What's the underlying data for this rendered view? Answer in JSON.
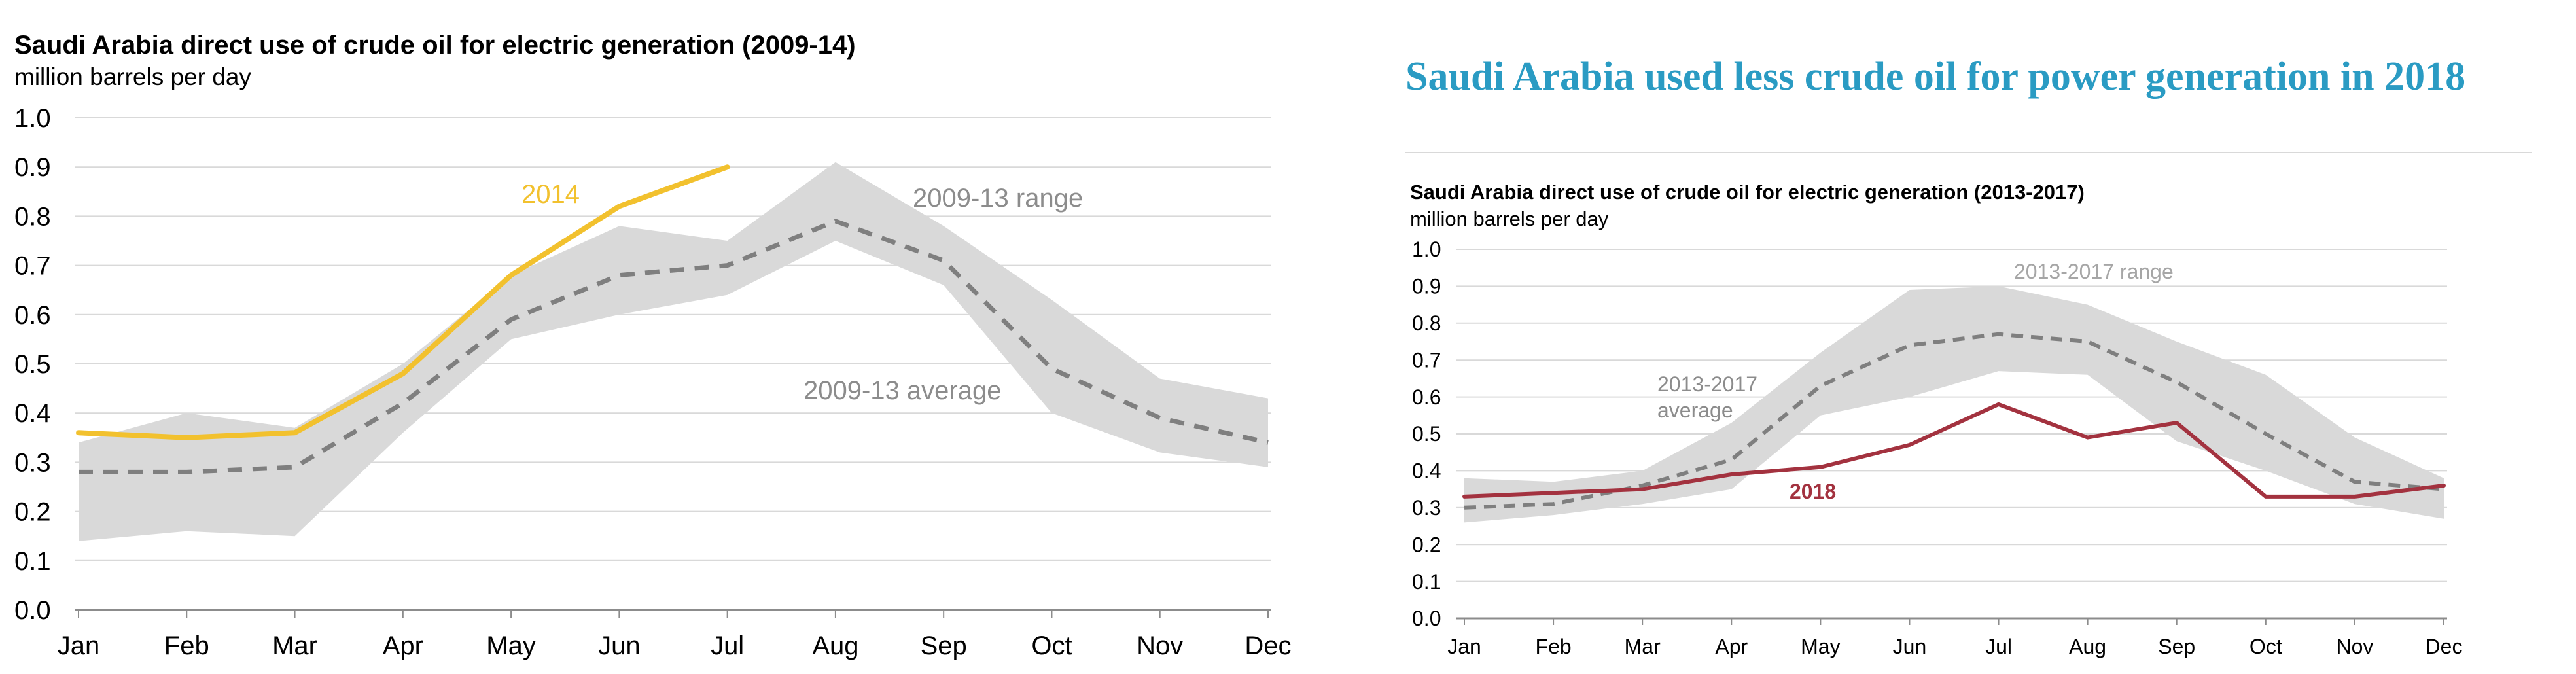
{
  "header": {
    "title": "Saudi Arabia used less crude oil for power generation in 2018"
  },
  "chart_data": [
    {
      "type": "line",
      "title": "Saudi Arabia direct use of crude oil for electric generation (2009-14)",
      "subtitle": "million barrels per day",
      "categories": [
        "Jan",
        "Feb",
        "Mar",
        "Apr",
        "May",
        "Jun",
        "Jul",
        "Aug",
        "Sep",
        "Oct",
        "Nov",
        "Dec"
      ],
      "ylim": [
        0,
        1.0
      ],
      "yticks": [
        "0.0",
        "0.1",
        "0.2",
        "0.3",
        "0.4",
        "0.5",
        "0.6",
        "0.7",
        "0.8",
        "0.9",
        "1.0"
      ],
      "grid": true,
      "range": {
        "name": "2009-13 range",
        "low": [
          0.14,
          0.16,
          0.15,
          0.36,
          0.55,
          0.6,
          0.64,
          0.75,
          0.66,
          0.4,
          0.32,
          0.29
        ],
        "high": [
          0.34,
          0.4,
          0.37,
          0.5,
          0.68,
          0.78,
          0.75,
          0.91,
          0.78,
          0.63,
          0.47,
          0.43
        ],
        "color": "#d9d9d9"
      },
      "series": [
        {
          "name": "2009-13 average",
          "values": [
            0.28,
            0.28,
            0.29,
            0.42,
            0.59,
            0.68,
            0.7,
            0.79,
            0.71,
            0.49,
            0.39,
            0.34
          ],
          "color": "#7f7f7f",
          "dashed": true
        },
        {
          "name": "2014",
          "values": [
            0.36,
            0.35,
            0.36,
            0.48,
            0.68,
            0.82,
            0.9,
            null,
            null,
            null,
            null,
            null
          ],
          "color": "#f2c12e",
          "dashed": false
        }
      ],
      "annotations": [
        "2014",
        "2009-13  range",
        "2009-13  average"
      ]
    },
    {
      "type": "line",
      "title": "Saudi Arabia direct use of crude oil for electric generation (2013-2017)",
      "subtitle": "million barrels per day",
      "categories": [
        "Jan",
        "Feb",
        "Mar",
        "Apr",
        "May",
        "Jun",
        "Jul",
        "Aug",
        "Sep",
        "Oct",
        "Nov",
        "Dec"
      ],
      "ylim": [
        0,
        1.0
      ],
      "yticks": [
        "0.0",
        "0.1",
        "0.2",
        "0.3",
        "0.4",
        "0.5",
        "0.6",
        "0.7",
        "0.8",
        "0.9",
        "1.0"
      ],
      "grid": true,
      "range": {
        "name": "2013-2017 range",
        "low": [
          0.26,
          0.28,
          0.31,
          0.35,
          0.55,
          0.6,
          0.67,
          0.66,
          0.48,
          0.4,
          0.31,
          0.27
        ],
        "high": [
          0.38,
          0.37,
          0.4,
          0.53,
          0.72,
          0.89,
          0.9,
          0.85,
          0.75,
          0.66,
          0.49,
          0.38
        ],
        "color": "#d9d9d9"
      },
      "series": [
        {
          "name": "2013-2017 average",
          "values": [
            0.3,
            0.31,
            0.36,
            0.43,
            0.63,
            0.74,
            0.77,
            0.75,
            0.64,
            0.5,
            0.37,
            0.35
          ],
          "color": "#7f7f7f",
          "dashed": true
        },
        {
          "name": "2018",
          "values": [
            0.33,
            0.34,
            0.35,
            0.39,
            0.41,
            0.47,
            0.58,
            0.49,
            0.53,
            0.33,
            0.33,
            0.36
          ],
          "color": "#a3323f",
          "dashed": false
        }
      ],
      "annotations": [
        "2013-2017 range",
        "2013-2017",
        "average",
        "2018"
      ]
    }
  ]
}
